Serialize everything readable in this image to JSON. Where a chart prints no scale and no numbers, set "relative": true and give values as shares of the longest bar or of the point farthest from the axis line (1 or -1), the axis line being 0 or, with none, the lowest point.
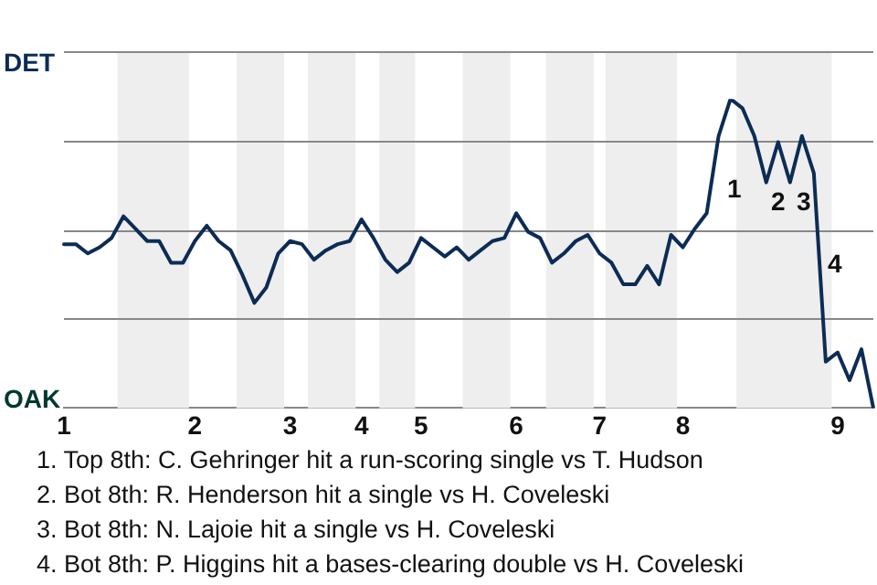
{
  "chart_data": {
    "type": "line",
    "relative": true,
    "categories": [
      "1",
      null,
      null,
      null,
      null,
      null,
      null,
      null,
      null,
      null,
      null,
      "2",
      null,
      null,
      null,
      null,
      null,
      null,
      null,
      "3",
      null,
      null,
      null,
      null,
      null,
      "4",
      null,
      null,
      null,
      null,
      "5",
      null,
      null,
      null,
      null,
      null,
      null,
      null,
      "6",
      null,
      null,
      null,
      null,
      null,
      null,
      "7",
      null,
      null,
      null,
      null,
      null,
      null,
      "8",
      null,
      null,
      null,
      null,
      null,
      null,
      null,
      null,
      null,
      null,
      null,
      null,
      "9",
      null,
      null,
      null
    ],
    "series": [
      {
        "color": "#0c2c56",
        "values": [
          0.53,
          0.53,
          0.5,
          0.52,
          0.55,
          0.62,
          0.58,
          0.54,
          0.54,
          0.47,
          0.47,
          0.54,
          0.59,
          0.54,
          0.51,
          0.43,
          0.34,
          0.39,
          0.5,
          0.54,
          0.53,
          0.48,
          0.51,
          0.53,
          0.54,
          0.61,
          0.55,
          0.48,
          0.44,
          0.47,
          0.55,
          0.52,
          0.49,
          0.52,
          0.48,
          0.51,
          0.54,
          0.55,
          0.63,
          0.57,
          0.55,
          0.47,
          0.5,
          0.54,
          0.56,
          0.5,
          0.47,
          0.4,
          0.4,
          0.46,
          0.4,
          0.56,
          0.52,
          0.58,
          0.63,
          0.88,
          1,
          0.97,
          0.88,
          0.73,
          0.86,
          0.73,
          0.88,
          0.76,
          0.15,
          0.18,
          0.09,
          0.19,
          0
        ]
      }
    ],
    "grid": "y",
    "legend": false,
    "marker": "none",
    "line_style": "solid",
    "annotations": [
      "DET",
      "OAK",
      "1",
      "2",
      "3",
      "4",
      "1. Top 8th: C. Gehringer hit a run-scoring single vs T. Hudson",
      "2. Bot 8th: R. Henderson hit a single vs H. Coveleski",
      "3. Bot 8th: N. Lajoie hit a single vs H. Coveleski",
      "4. Bot 8th: P. Higgins hit a bases-clearing double vs H. Coveleski"
    ]
  }
}
